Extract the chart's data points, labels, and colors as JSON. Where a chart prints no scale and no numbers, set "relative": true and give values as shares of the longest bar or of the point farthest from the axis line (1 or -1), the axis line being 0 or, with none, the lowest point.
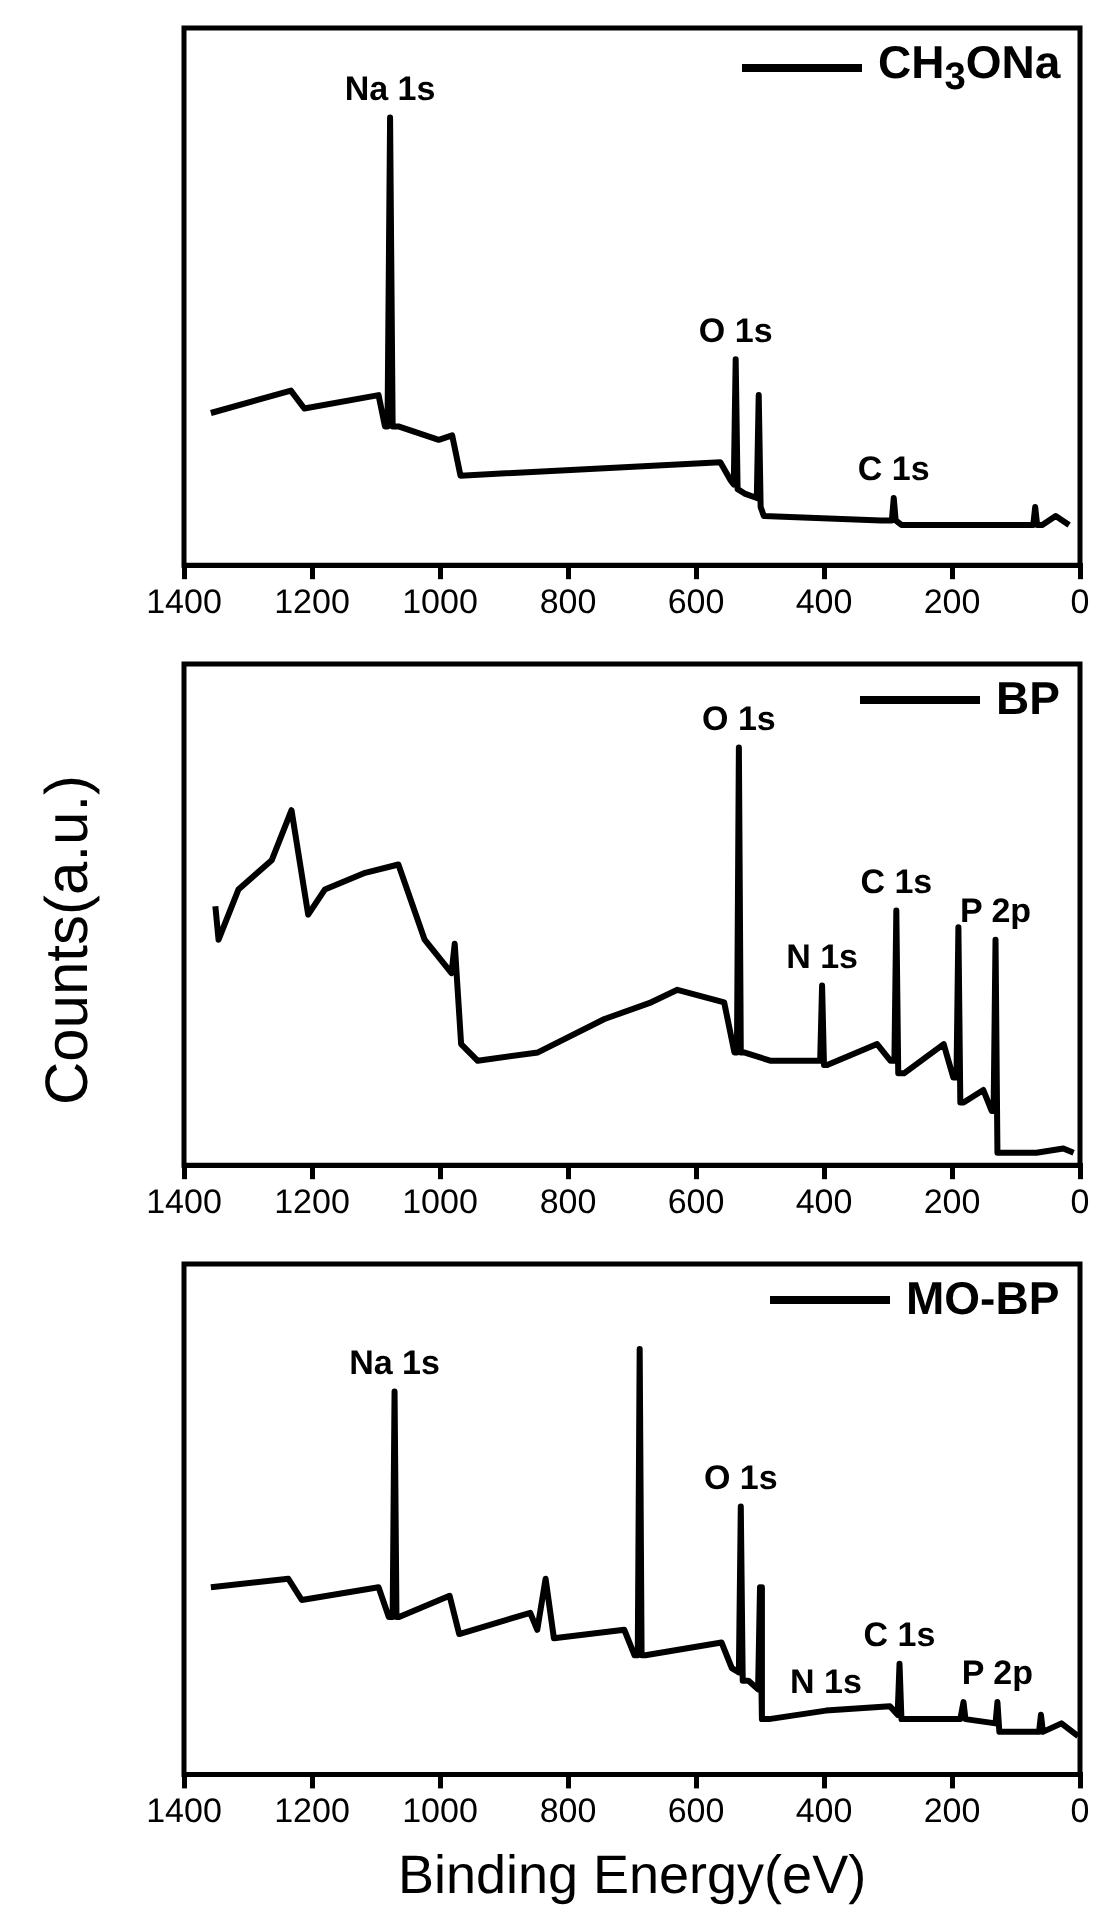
{
  "chart_data": [
    {
      "type": "line",
      "relative": true,
      "legend": "top right",
      "xlim": [
        1400,
        0
      ],
      "xticks": [
        1400,
        1200,
        1000,
        800,
        600,
        400,
        200,
        0
      ],
      "series": [
        {
          "name": "CH$_{3}$ONa",
          "color": "#000000",
          "x": [
            1358,
            1233,
            1212,
            1096,
            1086,
            1082,
            1078,
            1074,
            1065,
            1002,
            981,
            968,
            562,
            546,
            541,
            538,
            535,
            524,
            505,
            502,
            499,
            494,
            311,
            294,
            291,
            288,
            279,
            80,
            73,
            70,
            67,
            59,
            38,
            17
          ],
          "values": [
            0.34,
            0.39,
            0.35,
            0.38,
            0.31,
            0.31,
            1,
            0.31,
            0.31,
            0.28,
            0.29,
            0.2,
            0.23,
            0.19,
            0.18,
            0.46,
            0.17,
            0.16,
            0.15,
            0.38,
            0.13,
            0.11,
            0.1,
            0.1,
            0.15,
            0.1,
            0.09,
            0.09,
            0.09,
            0.13,
            0.09,
            0.09,
            0.11,
            0.09
          ]
        }
      ],
      "annotations": [
        {
          "text": "Na 1s",
          "x": 1078,
          "y": 1
        },
        {
          "text": "O 1s",
          "x": 538,
          "y": 0.46
        },
        {
          "text": "C 1s",
          "x": 291,
          "y": 0.15
        }
      ]
    },
    {
      "type": "line",
      "relative": true,
      "legend": "top right",
      "ylabel": "Counts(a.u.)",
      "xlim": [
        1400,
        0
      ],
      "xticks": [
        1400,
        1200,
        1000,
        800,
        600,
        400,
        200,
        0
      ],
      "series": [
        {
          "name": "BP",
          "color": "#000000",
          "x": [
            1351,
            1346,
            1315,
            1263,
            1232,
            1206,
            1180,
            1117,
            1065,
            1024,
            982,
            977,
            967,
            941,
            847,
            743,
            670,
            629,
            556,
            540,
            536,
            533,
            530,
            525,
            483,
            411,
            406,
            403,
            400,
            395,
            317,
            296,
            290,
            287,
            284,
            275,
            213,
            198,
            193,
            190,
            187,
            182,
            151,
            138,
            135,
            132,
            129,
            125,
            68,
            26,
            10
          ],
          "values": [
            0.62,
            0.54,
            0.66,
            0.73,
            0.85,
            0.6,
            0.66,
            0.7,
            0.72,
            0.54,
            0.46,
            0.53,
            0.29,
            0.25,
            0.27,
            0.35,
            0.39,
            0.42,
            0.39,
            0.27,
            0.27,
            1,
            0.27,
            0.27,
            0.25,
            0.25,
            0.25,
            0.43,
            0.24,
            0.24,
            0.29,
            0.25,
            0.25,
            0.61,
            0.22,
            0.22,
            0.29,
            0.21,
            0.21,
            0.57,
            0.15,
            0.15,
            0.18,
            0.13,
            0.13,
            0.54,
            0.03,
            0.03,
            0.03,
            0.04,
            0.03
          ]
        }
      ],
      "annotations": [
        {
          "text": "O 1s",
          "x": 533,
          "y": 1
        },
        {
          "text": "N 1s",
          "x": 403,
          "y": 0.43
        },
        {
          "text": "C 1s",
          "x": 287,
          "y": 0.61
        },
        {
          "text": "P 2p",
          "x": 132,
          "y": 0.54
        }
      ]
    },
    {
      "type": "line",
      "relative": true,
      "legend": "top right",
      "xlabel": "Binding Energy(eV)",
      "xlim": [
        1400,
        0
      ],
      "xticks": [
        1400,
        1200,
        1000,
        800,
        600,
        400,
        200,
        0
      ],
      "series": [
        {
          "name": "MO-BP",
          "color": "#000000",
          "x": [
            1358,
            1237,
            1216,
            1096,
            1080,
            1074,
            1071,
            1068,
            1064,
            985,
            970,
            859,
            848,
            835,
            822,
            712,
            696,
            691,
            688,
            685,
            679,
            560,
            544,
            533,
            530,
            527,
            518,
            503,
            500,
            497,
            486,
            397,
            297,
            285,
            282,
            279,
            271,
            187,
            182,
            179,
            132,
            129,
            126,
            119,
            64,
            61,
            58,
            29,
            3
          ],
          "values": [
            0.44,
            0.46,
            0.41,
            0.44,
            0.37,
            0.37,
            0.9,
            0.37,
            0.37,
            0.42,
            0.33,
            0.38,
            0.34,
            0.46,
            0.32,
            0.34,
            0.28,
            0.28,
            1,
            0.28,
            0.28,
            0.31,
            0.25,
            0.24,
            0.63,
            0.22,
            0.22,
            0.2,
            0.44,
            0.13,
            0.13,
            0.15,
            0.16,
            0.14,
            0.26,
            0.13,
            0.13,
            0.13,
            0.17,
            0.13,
            0.12,
            0.17,
            0.1,
            0.1,
            0.1,
            0.14,
            0.1,
            0.12,
            0.09
          ]
        }
      ],
      "annotations": [
        {
          "text": "Na 1s",
          "x": 1071,
          "y": 0.9
        },
        {
          "text": "O 1s",
          "x": 530,
          "y": 0.63
        },
        {
          "text": "N 1s",
          "x": 397,
          "y": 0.15
        },
        {
          "text": "C 1s",
          "x": 282,
          "y": 0.26
        },
        {
          "text": "P 2p",
          "x": 129,
          "y": 0.17
        }
      ]
    }
  ]
}
